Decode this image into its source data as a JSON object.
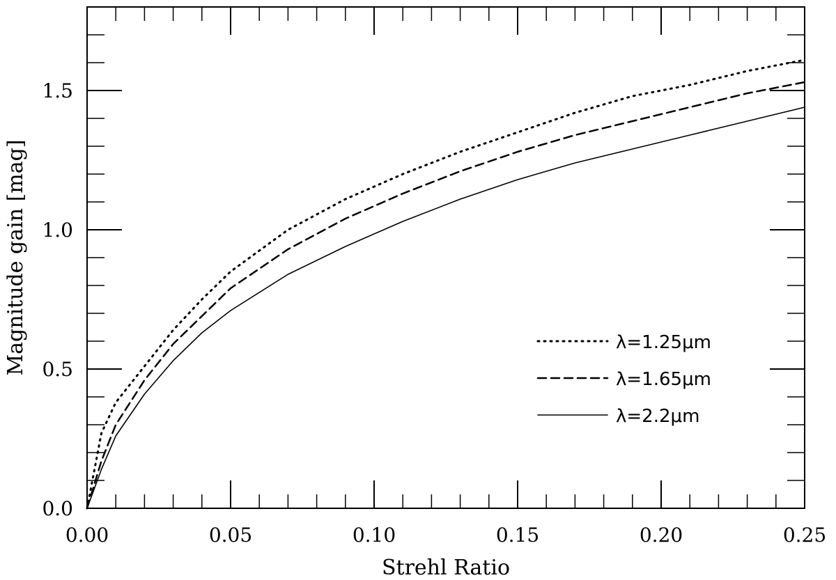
{
  "chart_data": {
    "type": "line",
    "title": "",
    "xlabel": "Strehl Ratio",
    "ylabel": "Magnitude gain [mag]",
    "xlim": [
      0.0,
      0.25
    ],
    "ylim": [
      0.0,
      1.8
    ],
    "x_ticks": [
      "0.00",
      "0.05",
      "0.10",
      "0.15",
      "0.20",
      "0.25"
    ],
    "y_ticks": [
      "0.0",
      "0.5",
      "1.0",
      "1.5"
    ],
    "grid": false,
    "legend_position": "right",
    "series": [
      {
        "name": "λ=1.25μm",
        "line_style": "dotted",
        "x": [
          0.0,
          0.005,
          0.01,
          0.02,
          0.03,
          0.04,
          0.05,
          0.07,
          0.09,
          0.11,
          0.13,
          0.15,
          0.17,
          0.19,
          0.21,
          0.23,
          0.25
        ],
        "y": [
          0.0,
          0.27,
          0.38,
          0.51,
          0.64,
          0.75,
          0.85,
          1.0,
          1.11,
          1.2,
          1.28,
          1.35,
          1.42,
          1.48,
          1.52,
          1.57,
          1.61
        ]
      },
      {
        "name": "λ=1.65μm",
        "line_style": "dashed",
        "x": [
          0.0,
          0.005,
          0.01,
          0.02,
          0.03,
          0.04,
          0.05,
          0.07,
          0.09,
          0.11,
          0.13,
          0.15,
          0.17,
          0.19,
          0.21,
          0.23,
          0.25
        ],
        "y": [
          0.0,
          0.17,
          0.3,
          0.46,
          0.59,
          0.69,
          0.79,
          0.93,
          1.04,
          1.13,
          1.21,
          1.28,
          1.34,
          1.39,
          1.44,
          1.49,
          1.53
        ]
      },
      {
        "name": "λ=2.2μm",
        "line_style": "solid",
        "x": [
          0.0,
          0.005,
          0.01,
          0.02,
          0.03,
          0.04,
          0.05,
          0.07,
          0.09,
          0.11,
          0.13,
          0.15,
          0.17,
          0.19,
          0.21,
          0.23,
          0.25
        ],
        "y": [
          0.0,
          0.14,
          0.26,
          0.41,
          0.53,
          0.63,
          0.71,
          0.84,
          0.94,
          1.03,
          1.11,
          1.18,
          1.24,
          1.29,
          1.34,
          1.39,
          1.44
        ]
      }
    ]
  }
}
